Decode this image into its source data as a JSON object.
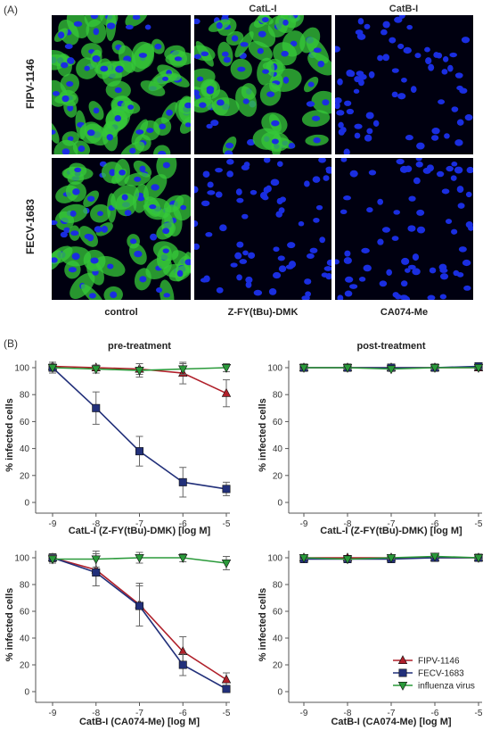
{
  "panel_a": {
    "label": "(A)",
    "column_headers": [
      "",
      "CatL-I",
      "CatB-I"
    ],
    "row_headers": [
      "FIPV-1146",
      "FECV-1683"
    ],
    "bottom_labels": [
      "control",
      "Z-FY(tBu)-DMK",
      "CA074-Me"
    ],
    "colors": {
      "background": "#000010",
      "nuclei": "#1a2ee0",
      "viral_antigen": "#36c83a"
    },
    "images": [
      [
        {
          "infected": 0.9
        },
        {
          "infected": 0.75
        },
        {
          "infected": 0.0
        }
      ],
      [
        {
          "infected": 0.85
        },
        {
          "infected": 0.0
        },
        {
          "infected": 0.0
        }
      ]
    ]
  },
  "panel_b": {
    "label": "(B)"
  },
  "chart_data": [
    {
      "type": "line",
      "panel": "pre-treatment CatL-I",
      "title": "pre-treatment",
      "xlabel": "CatL-I (Z-FY(tBu)-DMK)  [log M]",
      "ylabel": "% infected cells",
      "x": [
        -9,
        -8,
        -7,
        -6,
        -5
      ],
      "xlim": [
        -9,
        -5
      ],
      "ylim": [
        0,
        100
      ],
      "yticks": [
        0,
        20,
        40,
        60,
        80,
        100
      ],
      "series": [
        {
          "name": "FIPV-1146",
          "color": "#b0202a",
          "marker": "triangle-up",
          "values": [
            101,
            100,
            99,
            96,
            81
          ],
          "errors": [
            3,
            2,
            4,
            8,
            10
          ]
        },
        {
          "name": "FECV-1683",
          "color": "#22307a",
          "marker": "square",
          "values": [
            100,
            70,
            38,
            15,
            10
          ],
          "errors": [
            2,
            12,
            11,
            11,
            5
          ]
        },
        {
          "name": "influenza virus",
          "color": "#2a9a3a",
          "marker": "triangle-down",
          "values": [
            100,
            99,
            98,
            99,
            100
          ],
          "errors": [
            4,
            3,
            5,
            4,
            3
          ]
        }
      ]
    },
    {
      "type": "line",
      "panel": "post-treatment CatL-I",
      "title": "post-treatment",
      "xlabel": "CatL-I (Z-FY(tBu)-DMK)  [log M]",
      "ylabel": "% infected cells",
      "x": [
        -9,
        -8,
        -7,
        -6,
        -5
      ],
      "xlim": [
        -9,
        -5
      ],
      "ylim": [
        0,
        100
      ],
      "yticks": [
        0,
        20,
        40,
        60,
        80,
        100
      ],
      "series": [
        {
          "name": "FIPV-1146",
          "color": "#b0202a",
          "marker": "triangle-up",
          "values": [
            100,
            100,
            100,
            100,
            100
          ],
          "errors": [
            1,
            1,
            1,
            1,
            1
          ]
        },
        {
          "name": "FECV-1683",
          "color": "#22307a",
          "marker": "square",
          "values": [
            100,
            100,
            100,
            100,
            101
          ],
          "errors": [
            1,
            1,
            1,
            1,
            1
          ]
        },
        {
          "name": "influenza virus",
          "color": "#2a9a3a",
          "marker": "triangle-down",
          "values": [
            100,
            100,
            99,
            100,
            100
          ],
          "errors": [
            1,
            1,
            1,
            1,
            1
          ]
        }
      ]
    },
    {
      "type": "line",
      "panel": "pre-treatment CatB-I",
      "title": "",
      "xlabel": "CatB-I (CA074-Me) [log M]",
      "ylabel": "% infected cells",
      "x": [
        -9,
        -8,
        -7,
        -6,
        -5
      ],
      "xlim": [
        -9,
        -5
      ],
      "ylim": [
        0,
        100
      ],
      "yticks": [
        0,
        20,
        40,
        60,
        80,
        100
      ],
      "series": [
        {
          "name": "FIPV-1146",
          "color": "#b0202a",
          "marker": "triangle-up",
          "values": [
            100,
            91,
            65,
            30,
            9
          ],
          "errors": [
            3,
            12,
            16,
            11,
            5
          ]
        },
        {
          "name": "FECV-1683",
          "color": "#22307a",
          "marker": "square",
          "values": [
            100,
            89,
            64,
            20,
            2
          ],
          "errors": [
            3,
            10,
            15,
            8,
            2
          ]
        },
        {
          "name": "influenza virus",
          "color": "#2a9a3a",
          "marker": "triangle-down",
          "values": [
            99,
            99,
            100,
            100,
            96
          ],
          "errors": [
            3,
            6,
            4,
            3,
            5
          ]
        }
      ]
    },
    {
      "type": "line",
      "panel": "post-treatment CatB-I",
      "title": "",
      "xlabel": "CatB-I (CA074-Me) [log M]",
      "ylabel": "% infected cells",
      "x": [
        -9,
        -8,
        -7,
        -6,
        -5
      ],
      "xlim": [
        -9,
        -5
      ],
      "ylim": [
        0,
        100
      ],
      "yticks": [
        0,
        20,
        40,
        60,
        80,
        100
      ],
      "legend": {
        "position": "bottom-right",
        "entries": [
          "FIPV-1146",
          "FECV-1683",
          "influenza virus"
        ]
      },
      "series": [
        {
          "name": "FIPV-1146",
          "color": "#b0202a",
          "marker": "triangle-up",
          "values": [
            100,
            100,
            100,
            100,
            100
          ],
          "errors": [
            1,
            1,
            1,
            1,
            1
          ]
        },
        {
          "name": "FECV-1683",
          "color": "#22307a",
          "marker": "square",
          "values": [
            99,
            99,
            99,
            100,
            100
          ],
          "errors": [
            1,
            1,
            1,
            1,
            1
          ]
        },
        {
          "name": "influenza virus",
          "color": "#2a9a3a",
          "marker": "triangle-down",
          "values": [
            100,
            99,
            100,
            101,
            100
          ],
          "errors": [
            1,
            1,
            1,
            1,
            1
          ]
        }
      ]
    }
  ]
}
